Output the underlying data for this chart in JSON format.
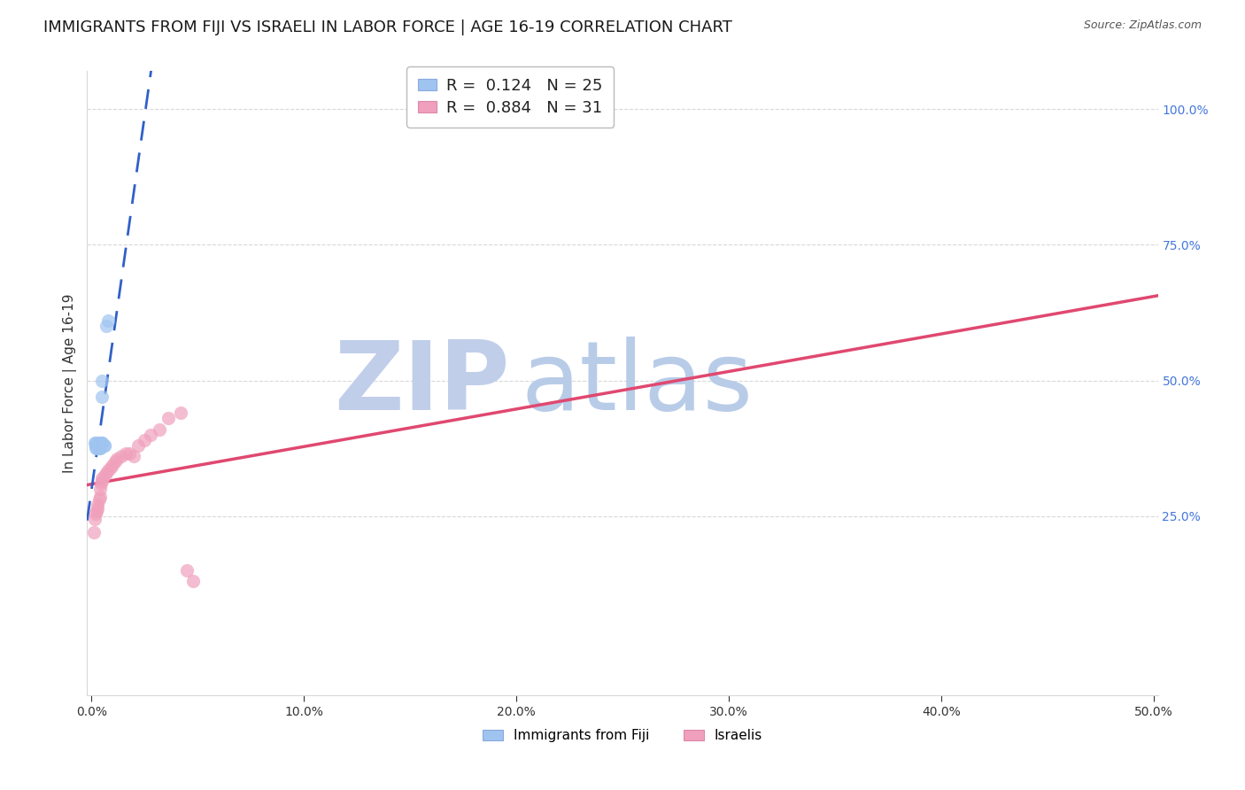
{
  "title": "IMMIGRANTS FROM FIJI VS ISRAELI IN LABOR FORCE | AGE 16-19 CORRELATION CHART",
  "source": "Source: ZipAtlas.com",
  "ylabel": "In Labor Force | Age 16-19",
  "fiji_R": 0.124,
  "fiji_N": 25,
  "israeli_R": 0.884,
  "israeli_N": 31,
  "fiji_color": "#A0C4F0",
  "israeli_color": "#F0A0BC",
  "fiji_line_color": "#3060C8",
  "israeli_line_color": "#E04870",
  "xlim_min": -0.002,
  "xlim_max": 0.502,
  "ylim_min": -0.08,
  "ylim_max": 1.07,
  "fiji_x": [
    0.0015,
    0.0018,
    0.002,
    0.002,
    0.0022,
    0.0025,
    0.003,
    0.003,
    0.003,
    0.0032,
    0.0035,
    0.004,
    0.004,
    0.004,
    0.004,
    0.0042,
    0.0045,
    0.005,
    0.005,
    0.005,
    0.005,
    0.006,
    0.006,
    0.007,
    0.008
  ],
  "fiji_y": [
    0.385,
    0.385,
    0.38,
    0.375,
    0.38,
    0.38,
    0.38,
    0.375,
    0.375,
    0.385,
    0.38,
    0.38,
    0.375,
    0.375,
    0.38,
    0.38,
    0.385,
    0.385,
    0.385,
    0.47,
    0.5,
    0.38,
    0.38,
    0.6,
    0.61
  ],
  "israeli_x": [
    0.001,
    0.0015,
    0.002,
    0.0025,
    0.003,
    0.003,
    0.0035,
    0.004,
    0.004,
    0.0045,
    0.005,
    0.005,
    0.006,
    0.007,
    0.008,
    0.009,
    0.01,
    0.011,
    0.012,
    0.014,
    0.016,
    0.018,
    0.02,
    0.022,
    0.025,
    0.028,
    0.032,
    0.036,
    0.042,
    0.045,
    0.048
  ],
  "israeli_y": [
    0.22,
    0.245,
    0.255,
    0.26,
    0.265,
    0.27,
    0.28,
    0.285,
    0.3,
    0.31,
    0.315,
    0.32,
    0.325,
    0.33,
    0.335,
    0.34,
    0.345,
    0.35,
    0.355,
    0.36,
    0.365,
    0.365,
    0.36,
    0.38,
    0.39,
    0.4,
    0.41,
    0.43,
    0.44,
    0.15,
    0.13
  ],
  "watermark_zip_color": "#C0CEEA",
  "watermark_atlas_color": "#B8CCE8",
  "grid_color": "#D8D8D8",
  "background_color": "#FFFFFF",
  "right_tick_color": "#4477DD",
  "title_fontsize": 13,
  "axis_label_fontsize": 11,
  "tick_fontsize": 10,
  "legend_fontsize": 13,
  "legend_number_color": "#2288CC",
  "x_ticks": [
    0.0,
    0.1,
    0.2,
    0.3,
    0.4,
    0.5
  ],
  "y_ticks_right": [
    0.25,
    0.5,
    0.75,
    1.0
  ],
  "scatter_size": 120,
  "scatter_alpha": 0.7
}
